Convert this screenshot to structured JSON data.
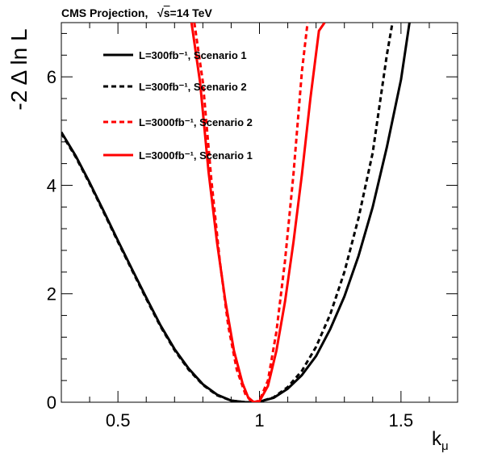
{
  "header": {
    "prefix": "CMS Projection,",
    "sqrt_label": "s",
    "energy": "=14 TeV"
  },
  "chart_data": {
    "type": "line",
    "title": "",
    "xlabel": "k",
    "xlabel_sub": "μ",
    "ylabel": "-2 Δ ln L",
    "xlim": [
      0.3,
      1.7
    ],
    "ylim": [
      0,
      7
    ],
    "x_ticks": [
      "0.5",
      "1",
      "1.5"
    ],
    "x_tick_values": [
      0.5,
      1.0,
      1.5
    ],
    "y_ticks": [
      "0",
      "2",
      "4",
      "6"
    ],
    "y_tick_values": [
      0,
      2,
      4,
      6
    ],
    "grid": false,
    "legend_position": "top-left",
    "series": [
      {
        "name": "L=300fb⁻¹, Scenario 1",
        "color": "#000000",
        "style": "solid",
        "x": [
          0.3,
          0.35,
          0.4,
          0.45,
          0.5,
          0.55,
          0.6,
          0.65,
          0.7,
          0.75,
          0.8,
          0.85,
          0.9,
          0.95,
          0.98,
          1.0,
          1.05,
          1.1,
          1.15,
          1.2,
          1.25,
          1.3,
          1.35,
          1.4,
          1.45,
          1.5,
          1.53
        ],
        "y": [
          4.98,
          4.55,
          4.05,
          3.52,
          2.98,
          2.45,
          1.93,
          1.42,
          0.98,
          0.62,
          0.33,
          0.14,
          0.03,
          0.0,
          0.0,
          0.01,
          0.08,
          0.25,
          0.5,
          0.85,
          1.35,
          1.95,
          2.7,
          3.6,
          4.7,
          5.95,
          7.0
        ]
      },
      {
        "name": "L=300fb⁻¹, Scenario 2",
        "color": "#000000",
        "style": "dashed",
        "x": [
          0.3,
          0.35,
          0.4,
          0.45,
          0.5,
          0.55,
          0.6,
          0.65,
          0.7,
          0.75,
          0.8,
          0.85,
          0.9,
          0.95,
          0.98,
          1.0,
          1.05,
          1.1,
          1.15,
          1.2,
          1.25,
          1.3,
          1.35,
          1.4,
          1.45,
          1.47
        ],
        "y": [
          4.96,
          4.53,
          4.03,
          3.5,
          2.96,
          2.43,
          1.91,
          1.4,
          0.96,
          0.6,
          0.32,
          0.13,
          0.03,
          0.0,
          0.0,
          0.01,
          0.09,
          0.28,
          0.58,
          1.02,
          1.62,
          2.4,
          3.4,
          4.6,
          6.4,
          7.0
        ]
      },
      {
        "name": "L=3000fb⁻¹, Scenario 2",
        "color": "#ff0000",
        "style": "dashed",
        "x": [
          0.77,
          0.8,
          0.83,
          0.86,
          0.89,
          0.92,
          0.95,
          0.97,
          0.98,
          1.0,
          1.03,
          1.06,
          1.09,
          1.12,
          1.15,
          1.17
        ],
        "y": [
          7.0,
          5.9,
          4.1,
          2.6,
          1.4,
          0.6,
          0.15,
          0.02,
          0.0,
          0.03,
          0.4,
          1.3,
          2.6,
          4.2,
          6.1,
          7.0
        ]
      },
      {
        "name": "L=3000fb⁻¹, Scenario 1",
        "color": "#ff0000",
        "style": "solid",
        "x": [
          0.76,
          0.79,
          0.82,
          0.85,
          0.88,
          0.91,
          0.94,
          0.96,
          0.98,
          1.0,
          1.03,
          1.06,
          1.09,
          1.12,
          1.15,
          1.18,
          1.21,
          1.23
        ],
        "y": [
          7.0,
          5.9,
          4.25,
          2.95,
          1.85,
          0.95,
          0.35,
          0.09,
          0.0,
          0.02,
          0.3,
          0.95,
          1.85,
          2.95,
          4.2,
          5.6,
          6.85,
          7.0
        ]
      }
    ]
  }
}
